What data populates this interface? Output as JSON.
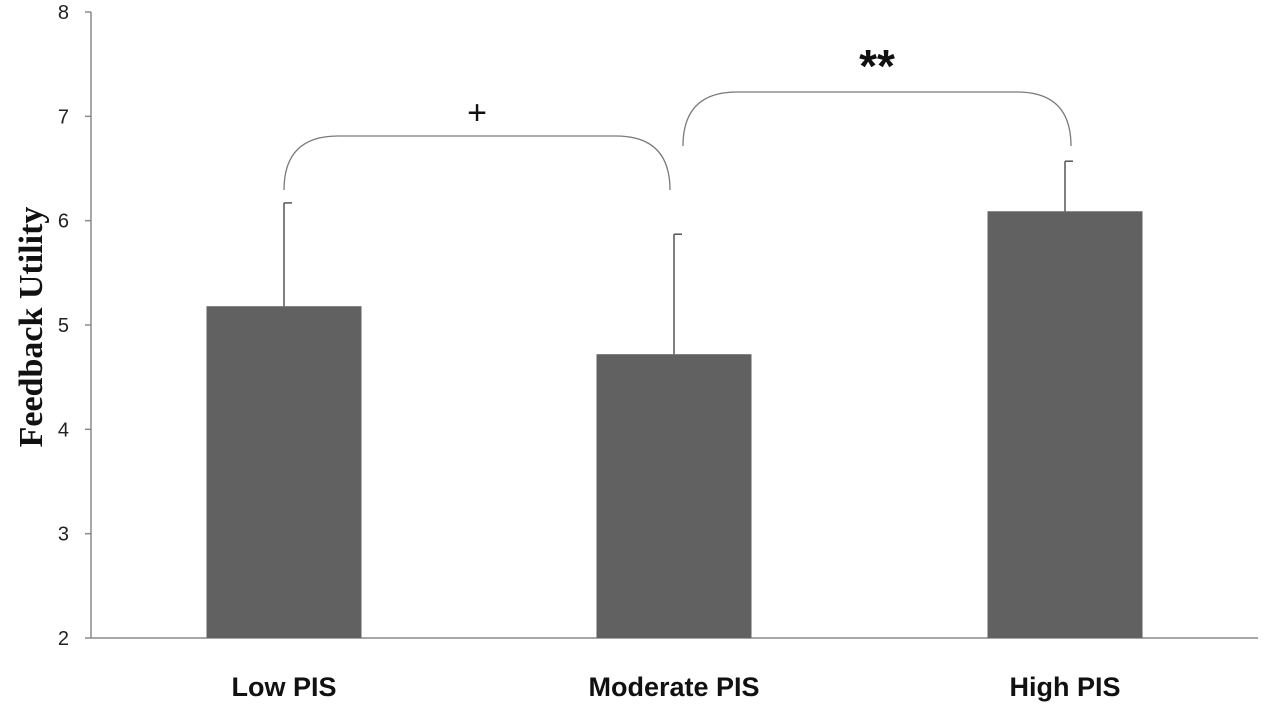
{
  "chart_data": {
    "type": "bar",
    "categories": [
      "Low PIS",
      "Moderate PIS",
      "High PIS"
    ],
    "values": [
      5.18,
      4.72,
      6.09
    ],
    "error_upper": [
      6.17,
      5.87,
      6.57
    ],
    "xlabel": "",
    "ylabel": "Feedback Utility",
    "ylim": [
      2,
      8
    ],
    "yticks": [
      2,
      3,
      4,
      5,
      6,
      7,
      8
    ],
    "ytick_labels": [
      "2",
      "3",
      "4",
      "5",
      "6",
      "7",
      "8"
    ],
    "grid": false,
    "bar_color": "#616161",
    "annotations": [
      {
        "from": 0,
        "to": 1,
        "label": "+"
      },
      {
        "from": 1,
        "to": 2,
        "label": "**"
      }
    ]
  }
}
